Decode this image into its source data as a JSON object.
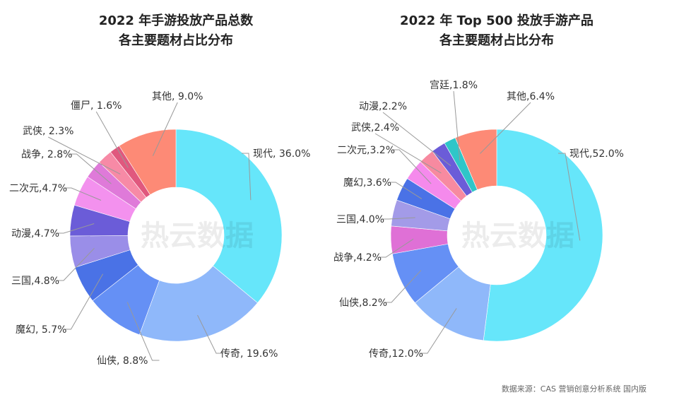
{
  "chart_data": [
    {
      "type": "pie",
      "donut": true,
      "title": "2022 年手游投放产品总数\n各主要题材占比分布",
      "title_lines": [
        "2022 年手游投放产品总数",
        "各主要题材占比分布"
      ],
      "start": "top, clockwise",
      "slices": [
        {
          "label": "现代, 36.0%",
          "name": "现代",
          "value": 36.0,
          "color": "#66e6fa"
        },
        {
          "label": "传奇, 19.6%",
          "name": "传奇",
          "value": 19.6,
          "color": "#8fb8fa"
        },
        {
          "label": "仙侠, 8.8%",
          "name": "仙侠",
          "value": 8.8,
          "color": "#6590f5"
        },
        {
          "label": "魔幻, 5.7%",
          "name": "魔幻",
          "value": 5.7,
          "color": "#4a72e6"
        },
        {
          "label": "三国,4.8%",
          "name": "三国",
          "value": 4.8,
          "color": "#9a8ee8"
        },
        {
          "label": "动漫,4.7%",
          "name": "动漫",
          "value": 4.7,
          "color": "#6b5cd8"
        },
        {
          "label": "二次元,4.7%",
          "name": "二次元",
          "value": 4.7,
          "color": "#f391ee"
        },
        {
          "label": "战争, 2.8%",
          "name": "战争",
          "value": 2.8,
          "color": "#df7ad9"
        },
        {
          "label": "武侠, 2.3%",
          "name": "武侠",
          "value": 2.3,
          "color": "#f78aa6"
        },
        {
          "label": "僵尸, 1.6%",
          "name": "僵尸",
          "value": 1.6,
          "color": "#e0587e"
        },
        {
          "label": "其他, 9.0%",
          "name": "其他",
          "value": 9.0,
          "color": "#fd8a76"
        }
      ]
    },
    {
      "type": "pie",
      "donut": true,
      "title": "2022 年 Top 500 投放手游产品\n各主要题材占比分布",
      "title_lines": [
        "2022 年 Top 500 投放手游产品",
        "各主要题材占比分布"
      ],
      "start": "top, clockwise",
      "slices": [
        {
          "label": "现代,52.0%",
          "name": "现代",
          "value": 52.0,
          "color": "#66e6fa"
        },
        {
          "label": "传奇,12.0%",
          "name": "传奇",
          "value": 12.0,
          "color": "#8fb8fa"
        },
        {
          "label": "仙侠,8.2%",
          "name": "仙侠",
          "value": 8.2,
          "color": "#6590f5"
        },
        {
          "label": "战争,4.2%",
          "name": "战争",
          "value": 4.2,
          "color": "#df70d6"
        },
        {
          "label": "三国,4.0%",
          "name": "三国",
          "value": 4.0,
          "color": "#a39be8"
        },
        {
          "label": "魔幻,3.6%",
          "name": "魔幻",
          "value": 3.6,
          "color": "#4a72e6"
        },
        {
          "label": "二次元,3.2%",
          "name": "二次元",
          "value": 3.2,
          "color": "#f58aec"
        },
        {
          "label": "武侠,2.4%",
          "name": "武侠",
          "value": 2.4,
          "color": "#f78aa0"
        },
        {
          "label": "动漫,2.2%",
          "name": "动漫",
          "value": 2.2,
          "color": "#6b5cd8"
        },
        {
          "label": "宫廷,1.8%",
          "name": "宫廷",
          "value": 1.8,
          "color": "#2fc6c8"
        },
        {
          "label": "其他,6.4%",
          "name": "其他",
          "value": 6.4,
          "color": "#fd8a76"
        }
      ]
    }
  ],
  "watermark": "热云数据",
  "source": "数据来源：CAS 营销创意分析系统 国内版"
}
